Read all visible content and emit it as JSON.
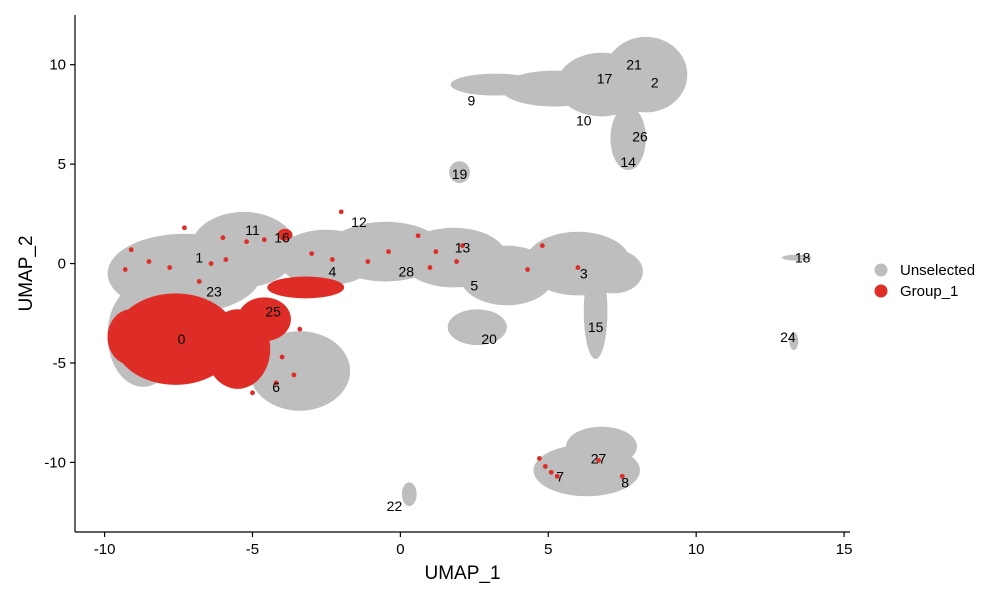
{
  "chart_data": {
    "type": "scatter",
    "title": "",
    "xlabel": "UMAP_1",
    "ylabel": "UMAP_2",
    "xlim": [
      -11,
      15.2
    ],
    "ylim": [
      -13.5,
      12.5
    ],
    "x_ticks": [
      -10,
      -5,
      0,
      5,
      10,
      15
    ],
    "y_ticks": [
      -10,
      -5,
      0,
      5,
      10
    ],
    "x_tick_labels": [
      "-10",
      "-5",
      "0",
      "5",
      "10",
      "15"
    ],
    "y_tick_labels": [
      "-10",
      "-5",
      "0",
      "5",
      "10"
    ],
    "grid": false,
    "legend_position": "right",
    "series": [
      {
        "name": "Unselected",
        "color": "#bebebe"
      },
      {
        "name": "Group_1",
        "color": "#de2d26"
      }
    ],
    "unselected_regions": [
      {
        "cx": -7.3,
        "cy": -0.5,
        "rx": 2.6,
        "ry": 2.0
      },
      {
        "cx": -5.3,
        "cy": 0.7,
        "rx": 1.8,
        "ry": 1.9
      },
      {
        "cx": -8.7,
        "cy": -3.6,
        "rx": 1.2,
        "ry": 2.6
      },
      {
        "cx": -3.4,
        "cy": -5.4,
        "rx": 1.7,
        "ry": 2.0
      },
      {
        "cx": -2.5,
        "cy": 0.3,
        "rx": 1.7,
        "ry": 1.4
      },
      {
        "cx": -0.5,
        "cy": 0.6,
        "rx": 2.0,
        "ry": 1.5
      },
      {
        "cx": 1.8,
        "cy": 0.3,
        "rx": 1.8,
        "ry": 1.5
      },
      {
        "cx": 3.6,
        "cy": -0.6,
        "rx": 1.6,
        "ry": 1.5
      },
      {
        "cx": 6.0,
        "cy": 0.0,
        "rx": 1.8,
        "ry": 1.6
      },
      {
        "cx": 7.2,
        "cy": -0.4,
        "rx": 1.0,
        "ry": 1.1
      },
      {
        "cx": 6.6,
        "cy": -2.4,
        "rx": 0.4,
        "ry": 2.4
      },
      {
        "cx": 2.6,
        "cy": -3.2,
        "rx": 1.0,
        "ry": 0.9
      },
      {
        "cx": 3.2,
        "cy": 9.0,
        "rx": 1.5,
        "ry": 0.55
      },
      {
        "cx": 5.2,
        "cy": 8.8,
        "rx": 1.8,
        "ry": 0.9
      },
      {
        "cx": 6.8,
        "cy": 9.0,
        "rx": 1.5,
        "ry": 1.6
      },
      {
        "cx": 8.3,
        "cy": 9.5,
        "rx": 1.4,
        "ry": 1.9
      },
      {
        "cx": 7.7,
        "cy": 6.3,
        "rx": 0.6,
        "ry": 1.6
      },
      {
        "cx": 2.0,
        "cy": 4.6,
        "rx": 0.35,
        "ry": 0.55
      },
      {
        "cx": 6.3,
        "cy": -10.4,
        "rx": 1.8,
        "ry": 1.3
      },
      {
        "cx": 6.8,
        "cy": -9.2,
        "rx": 1.2,
        "ry": 1.0
      },
      {
        "cx": 13.3,
        "cy": -3.9,
        "rx": 0.15,
        "ry": 0.45
      },
      {
        "cx": 13.4,
        "cy": 0.3,
        "rx": 0.5,
        "ry": 0.15
      },
      {
        "cx": 0.3,
        "cy": -11.6,
        "rx": 0.25,
        "ry": 0.6
      }
    ],
    "group1_regions": [
      {
        "cx": -7.6,
        "cy": -3.8,
        "rx": 2.1,
        "ry": 2.3
      },
      {
        "cx": -9.1,
        "cy": -3.7,
        "rx": 0.8,
        "ry": 1.4
      },
      {
        "cx": -5.5,
        "cy": -4.3,
        "rx": 1.1,
        "ry": 2.0
      },
      {
        "cx": -4.6,
        "cy": -2.8,
        "rx": 0.9,
        "ry": 1.1
      },
      {
        "cx": -3.2,
        "cy": -1.2,
        "rx": 1.3,
        "ry": 0.55
      },
      {
        "cx": -3.9,
        "cy": 1.45,
        "rx": 0.25,
        "ry": 0.3
      }
    ],
    "group1_points": [
      [
        -7.3,
        1.8
      ],
      [
        -6.0,
        1.3
      ],
      [
        -5.2,
        1.1
      ],
      [
        -8.5,
        0.1
      ],
      [
        -9.1,
        0.7
      ],
      [
        -6.4,
        0.0
      ],
      [
        -7.8,
        -0.2
      ],
      [
        -4.6,
        1.2
      ],
      [
        -3.0,
        0.5
      ],
      [
        -2.3,
        0.2
      ],
      [
        -2.0,
        2.6
      ],
      [
        -1.1,
        0.1
      ],
      [
        -0.4,
        0.6
      ],
      [
        0.6,
        1.4
      ],
      [
        1.2,
        0.6
      ],
      [
        1.0,
        -0.2
      ],
      [
        1.9,
        0.1
      ],
      [
        2.1,
        0.9
      ],
      [
        4.3,
        -0.3
      ],
      [
        4.8,
        0.9
      ],
      [
        6.0,
        -0.2
      ],
      [
        4.7,
        -9.8
      ],
      [
        4.9,
        -10.2
      ],
      [
        5.1,
        -10.5
      ],
      [
        5.3,
        -10.7
      ],
      [
        6.7,
        -9.9
      ],
      [
        7.5,
        -10.7
      ],
      [
        -3.6,
        -5.6
      ],
      [
        -4.2,
        -6.0
      ],
      [
        -5.0,
        -6.5
      ],
      [
        -9.3,
        -0.3
      ],
      [
        -6.8,
        -0.9
      ],
      [
        -4.0,
        -4.7
      ],
      [
        -3.4,
        -3.3
      ],
      [
        -5.9,
        0.2
      ]
    ],
    "cluster_labels": [
      {
        "text": "0",
        "x": -7.4,
        "y": -3.8
      },
      {
        "text": "1",
        "x": -6.8,
        "y": 0.3
      },
      {
        "text": "2",
        "x": 8.6,
        "y": 9.1
      },
      {
        "text": "3",
        "x": 6.2,
        "y": -0.5
      },
      {
        "text": "4",
        "x": -2.3,
        "y": -0.4
      },
      {
        "text": "5",
        "x": 2.5,
        "y": -1.1
      },
      {
        "text": "6",
        "x": -4.2,
        "y": -6.2
      },
      {
        "text": "7",
        "x": 5.4,
        "y": -10.7
      },
      {
        "text": "8",
        "x": 7.6,
        "y": -11.0
      },
      {
        "text": "9",
        "x": 2.4,
        "y": 8.2
      },
      {
        "text": "10",
        "x": 6.2,
        "y": 7.2
      },
      {
        "text": "11",
        "x": -5.0,
        "y": 1.7
      },
      {
        "text": "12",
        "x": -1.4,
        "y": 2.1
      },
      {
        "text": "13",
        "x": 2.1,
        "y": 0.8
      },
      {
        "text": "14",
        "x": 7.7,
        "y": 5.1
      },
      {
        "text": "15",
        "x": 6.6,
        "y": -3.2
      },
      {
        "text": "16",
        "x": -4.0,
        "y": 1.3
      },
      {
        "text": "17",
        "x": 6.9,
        "y": 9.3
      },
      {
        "text": "18",
        "x": 13.6,
        "y": 0.3
      },
      {
        "text": "19",
        "x": 2.0,
        "y": 4.5
      },
      {
        "text": "20",
        "x": 3.0,
        "y": -3.8
      },
      {
        "text": "21",
        "x": 7.9,
        "y": 10.0
      },
      {
        "text": "22",
        "x": -0.2,
        "y": -12.2
      },
      {
        "text": "23",
        "x": -6.3,
        "y": -1.4
      },
      {
        "text": "24",
        "x": 13.1,
        "y": -3.7
      },
      {
        "text": "25",
        "x": -4.3,
        "y": -2.4
      },
      {
        "text": "26",
        "x": 8.1,
        "y": 6.4
      },
      {
        "text": "27",
        "x": 6.7,
        "y": -9.8
      },
      {
        "text": "28",
        "x": 0.2,
        "y": -0.4
      }
    ]
  }
}
